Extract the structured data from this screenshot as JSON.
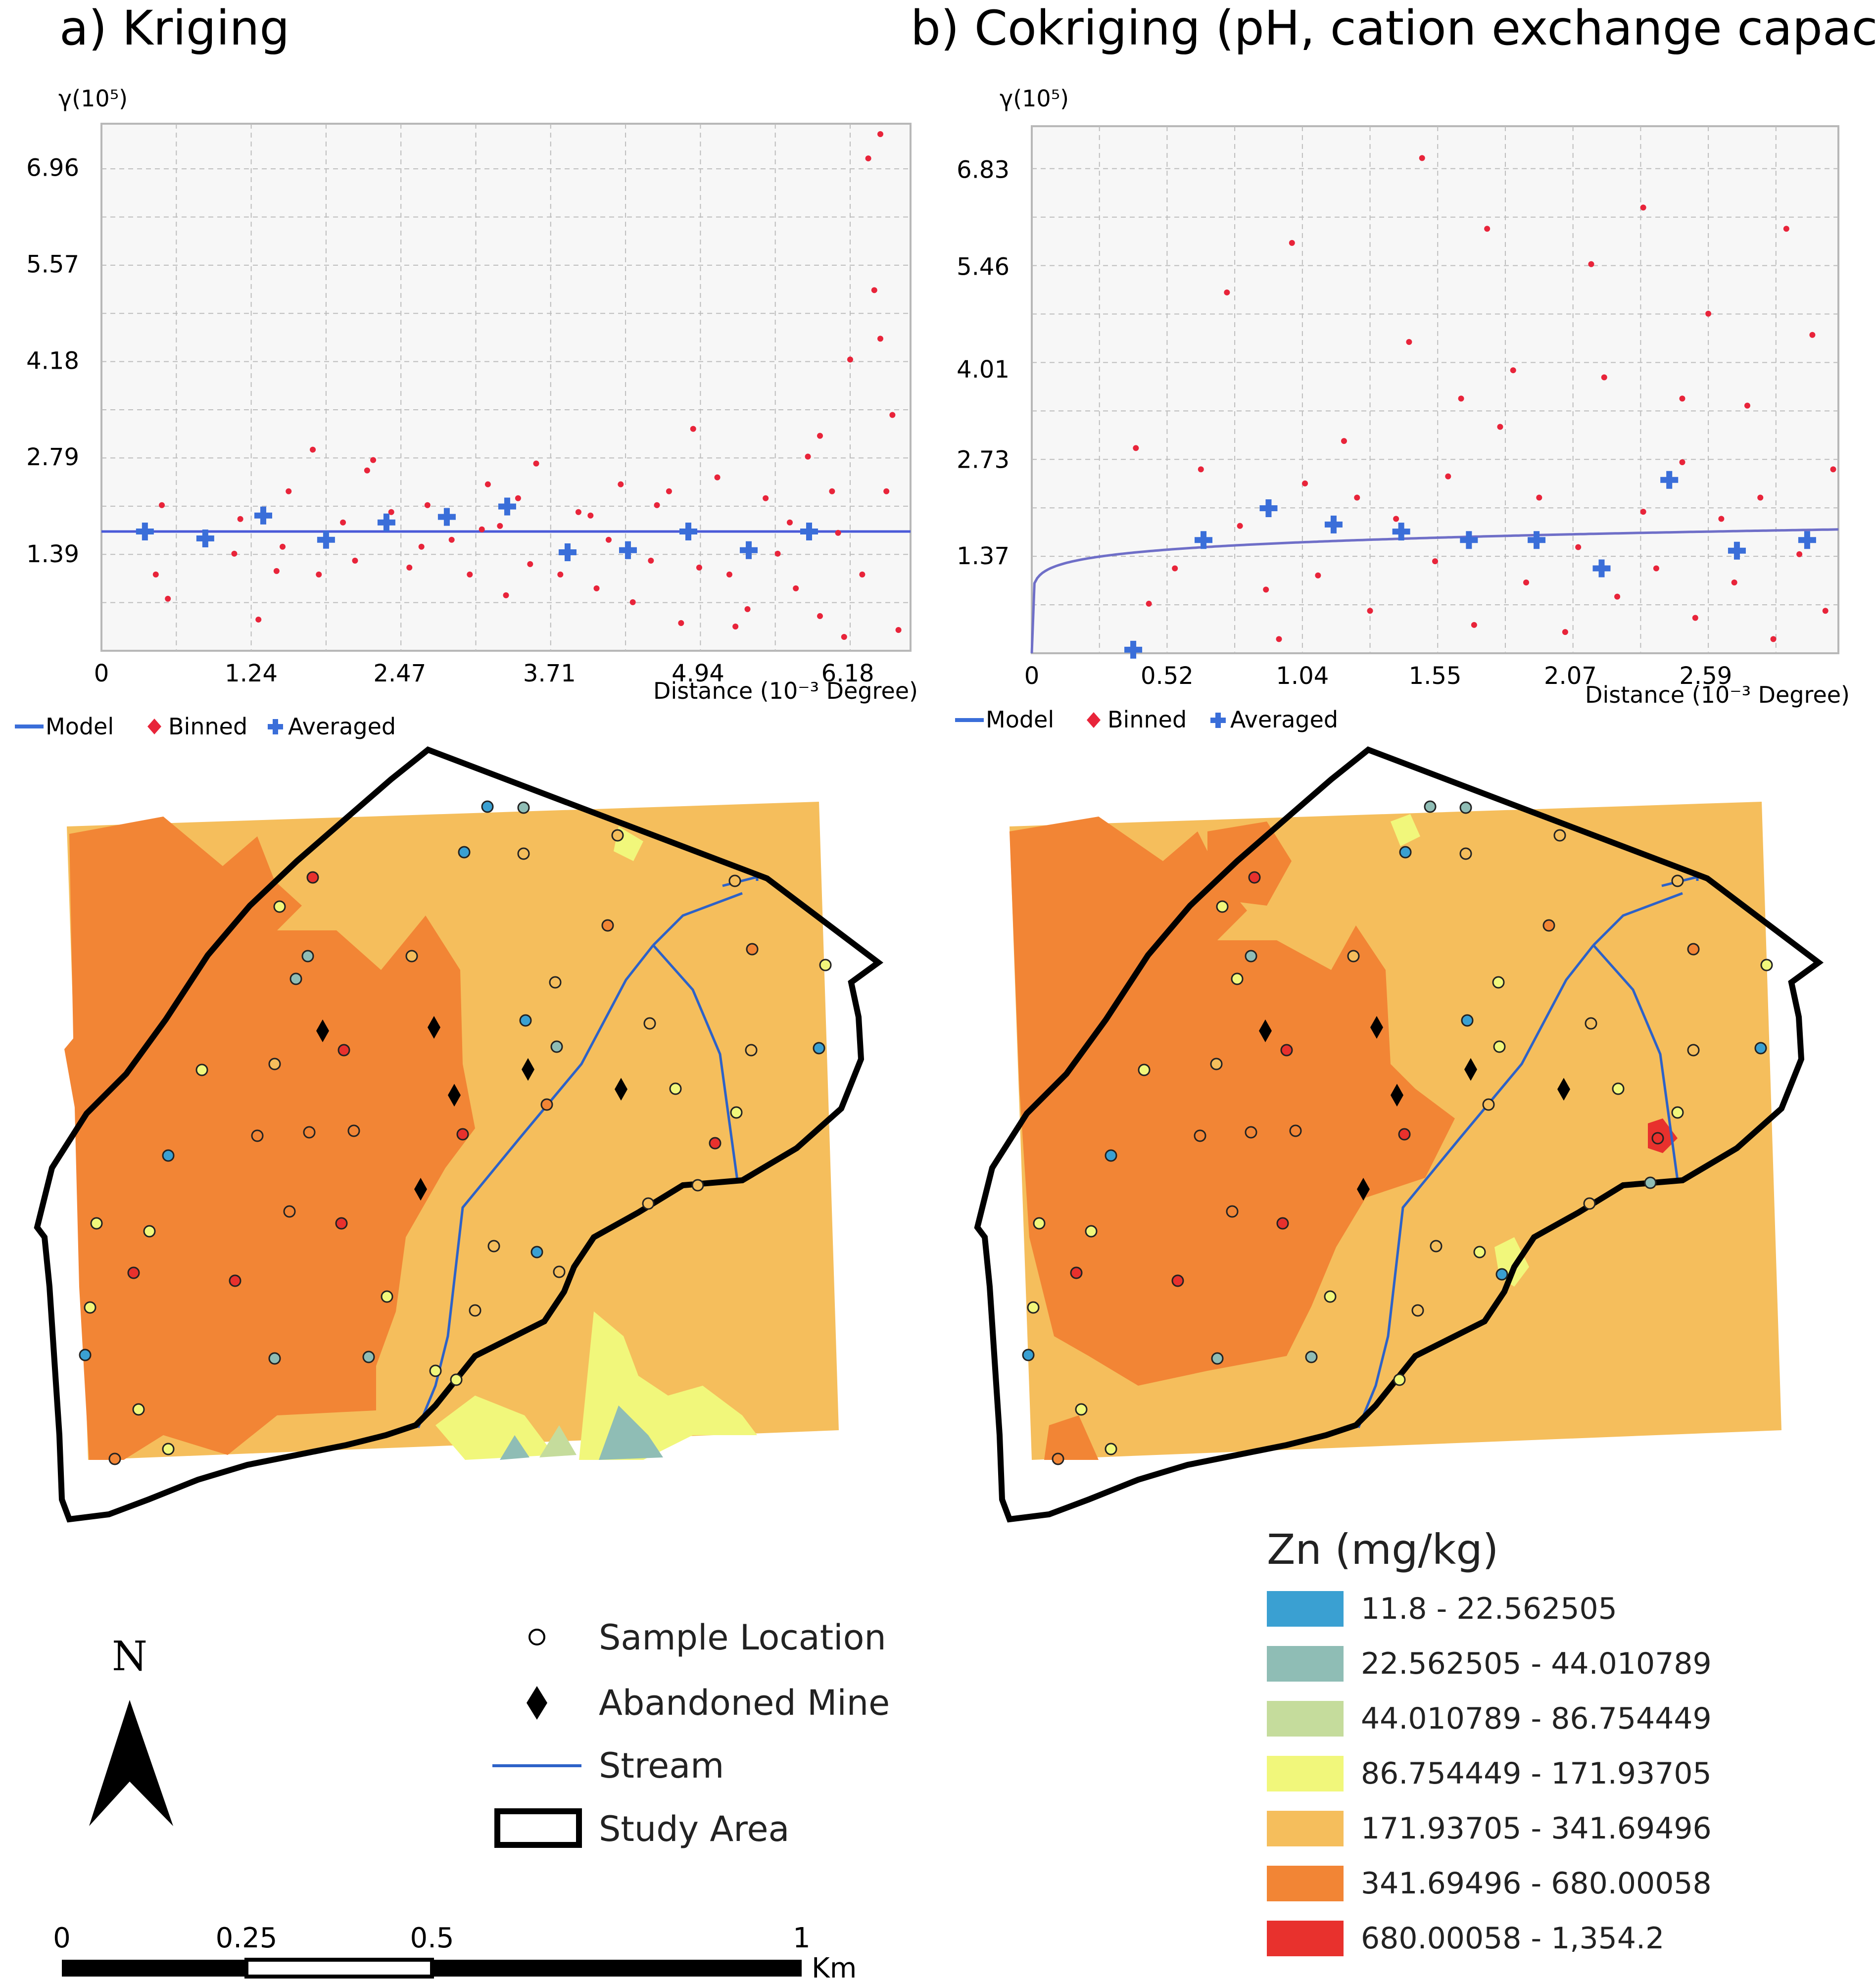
{
  "panel_a": {
    "title": "a) Kriging",
    "y_unit_label": "γ(10⁵)",
    "x_axis_label": "Distance (10⁻³ Degree)"
  },
  "panel_b": {
    "title": "b) Cokriging (pH, cation exchange capacity)*",
    "y_unit_label": "γ(10⁵)",
    "x_axis_label": "Distance (10⁻³ Degree)"
  },
  "semivariogram_legend": {
    "model": "Model",
    "binned": "Binned",
    "averaged": "Averaged"
  },
  "chart_data": [
    {
      "type": "scatter",
      "title": "a) Kriging",
      "xlabel": "Distance (10⁻³ Degree)",
      "ylabel": "γ(10⁵)",
      "xlim": [
        0,
        6.7
      ],
      "ylim": [
        0,
        7.6
      ],
      "xticks": [
        "0",
        "1.24",
        "2.47",
        "3.71",
        "4.94",
        "6.18"
      ],
      "xtick_values": [
        0,
        1.24,
        2.47,
        3.71,
        4.94,
        6.18
      ],
      "yticks": [
        "1.39",
        "2.79",
        "4.18",
        "5.57",
        "6.96"
      ],
      "ytick_values": [
        1.39,
        2.79,
        4.18,
        5.57,
        6.96
      ],
      "model": {
        "kind": "nugget",
        "sill": 1.72
      },
      "averaged": {
        "x": [
          0.36,
          0.86,
          1.34,
          1.86,
          2.36,
          2.86,
          3.36,
          3.86,
          4.36,
          4.86,
          5.36,
          5.86
        ],
        "y": [
          1.72,
          1.62,
          1.95,
          1.6,
          1.85,
          1.93,
          2.08,
          1.42,
          1.45,
          1.72,
          1.45,
          1.72
        ]
      },
      "binned": {
        "x": [
          0.45,
          0.5,
          1.1,
          1.15,
          1.3,
          1.5,
          1.55,
          1.8,
          2.0,
          2.1,
          2.2,
          2.4,
          2.55,
          2.7,
          2.9,
          3.05,
          3.2,
          3.3,
          3.45,
          3.55,
          3.6,
          3.8,
          3.95,
          4.1,
          4.2,
          4.3,
          4.4,
          4.55,
          4.7,
          4.8,
          4.95,
          5.1,
          5.2,
          5.35,
          5.5,
          5.6,
          5.75,
          5.85,
          5.95,
          6.1,
          6.2,
          6.3,
          6.4,
          6.5,
          6.6,
          1.75,
          2.65,
          3.35,
          4.05,
          4.9,
          5.7,
          6.05,
          6.35,
          6.55,
          0.55,
          1.45,
          2.25,
          3.15,
          4.6,
          5.25,
          5.95,
          6.45,
          6.45,
          6.15
        ],
        "y": [
          1.1,
          2.1,
          1.4,
          1.9,
          0.45,
          1.5,
          2.3,
          1.1,
          1.85,
          1.3,
          2.6,
          2.0,
          1.2,
          2.1,
          1.6,
          1.1,
          2.4,
          1.8,
          2.2,
          1.25,
          2.7,
          1.1,
          2.0,
          0.9,
          1.6,
          2.4,
          0.7,
          1.3,
          2.3,
          0.4,
          1.2,
          2.5,
          1.1,
          0.6,
          2.2,
          1.4,
          0.9,
          2.8,
          0.5,
          1.7,
          4.2,
          1.1,
          5.2,
          2.3,
          0.3,
          2.9,
          1.5,
          0.8,
          1.95,
          3.2,
          1.85,
          2.3,
          7.1,
          3.4,
          0.75,
          1.15,
          2.75,
          1.75,
          2.1,
          0.35,
          3.1,
          7.45,
          4.5,
          0.2
        ]
      }
    },
    {
      "type": "scatter",
      "title": "b) Cokriging (pH, cation exchange capacity)*",
      "xlabel": "Distance (10⁻³ Degree)",
      "ylabel": "γ(10⁵)",
      "xlim": [
        0,
        3.1
      ],
      "ylim": [
        0,
        7.45
      ],
      "xticks": [
        "0",
        "0.52",
        "1.04",
        "1.55",
        "2.07",
        "2.59"
      ],
      "xtick_values": [
        0,
        0.52,
        1.04,
        1.55,
        2.07,
        2.59
      ],
      "yticks": [
        "1.37",
        "2.73",
        "4.01",
        "5.46",
        "6.83"
      ],
      "ytick_values": [
        1.37,
        2.73,
        4.01,
        5.46,
        6.83
      ],
      "model": {
        "kind": "power",
        "sill": 1.75,
        "range": 3.1
      },
      "averaged": {
        "x": [
          0.39,
          0.66,
          0.91,
          1.16,
          1.42,
          1.68,
          1.94,
          2.19,
          2.45,
          2.71,
          2.98
        ],
        "y": [
          0.05,
          1.6,
          2.05,
          1.82,
          1.72,
          1.6,
          1.6,
          1.2,
          2.45,
          1.45,
          1.6
        ]
      },
      "binned": {
        "x": [
          0.4,
          0.55,
          0.65,
          0.8,
          0.9,
          1.05,
          1.1,
          1.2,
          1.3,
          1.4,
          1.45,
          1.55,
          1.6,
          1.7,
          1.8,
          1.9,
          1.95,
          2.05,
          2.1,
          2.2,
          2.25,
          2.35,
          2.4,
          2.5,
          2.55,
          2.65,
          2.7,
          2.8,
          2.85,
          2.95,
          3.0,
          3.05,
          0.75,
          1.0,
          1.75,
          2.35,
          1.65,
          2.9,
          2.5,
          1.25,
          2.75,
          0.95,
          2.15,
          1.85,
          2.6,
          3.08,
          1.5,
          0.45
        ],
        "y": [
          2.9,
          1.2,
          2.6,
          1.8,
          0.9,
          2.4,
          1.1,
          3.0,
          0.6,
          1.9,
          4.4,
          1.3,
          2.5,
          0.4,
          3.2,
          1.0,
          2.2,
          0.3,
          1.5,
          3.9,
          0.8,
          2.0,
          1.2,
          3.6,
          0.5,
          1.9,
          1.0,
          2.2,
          0.2,
          1.4,
          4.5,
          0.6,
          5.1,
          5.8,
          6.0,
          6.3,
          3.6,
          6.0,
          2.7,
          2.2,
          3.5,
          0.2,
          5.5,
          4.0,
          4.8,
          2.6,
          7.0,
          0.7
        ]
      }
    }
  ],
  "map_legend": {
    "sample_location": "Sample Location",
    "abandoned_mine": "Abandoned Mine",
    "stream": "Stream",
    "study_area": "Study Area"
  },
  "north_arrow_label": "N",
  "scale_bar": {
    "labels": [
      "0",
      "0.25",
      "0.5",
      "1"
    ],
    "unit": "Km"
  },
  "zn_legend": {
    "title": "Zn (mg/kg)",
    "classes": [
      {
        "label": "11.8 - 22.562505",
        "color": "#3aa0d2"
      },
      {
        "label": "22.562505 - 44.010789",
        "color": "#8fbdb5"
      },
      {
        "label": "44.010789 - 86.754449",
        "color": "#c5dc9c"
      },
      {
        "label": "86.754449 - 171.93705",
        "color": "#f1f77b"
      },
      {
        "label": "171.93705 - 341.69496",
        "color": "#f5be5c"
      },
      {
        "label": "341.69496 - 680.00058",
        "color": "#f28535"
      },
      {
        "label": "680.00058 - 1,354.2",
        "color": "#e8312d"
      }
    ]
  },
  "colors": {
    "binned": "#e8243a",
    "averaged": "#3a6ed9",
    "model_a": "#4a5ad8",
    "model_b": "#6f6fc8",
    "stream": "#2d62c8",
    "grid": "#bdbdbd",
    "plot_bg": "#f7f7f7"
  }
}
